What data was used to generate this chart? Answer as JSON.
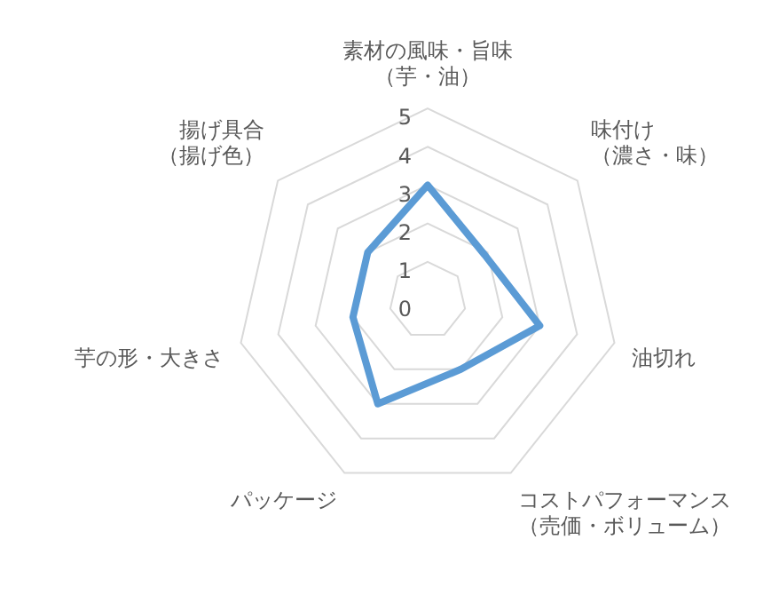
{
  "chart_data": {
    "type": "radar",
    "categories": [
      "素材の風味・旨味（芋・油）",
      "味付け（濃さ・味）",
      "油切れ",
      "コストパフォーマンス（売価・ボリューム）",
      "パッケージ",
      "芋の形・大きさ",
      "揚げ具合（揚げ色）"
    ],
    "series": [
      {
        "color": "#5b9bd5",
        "values": [
          3,
          1.9,
          3,
          2,
          3,
          2,
          2
        ]
      }
    ],
    "ylim": [
      0,
      5
    ],
    "yticks": [
      0,
      1,
      2,
      3,
      4,
      5
    ],
    "grid": true,
    "legend": false,
    "marker": "none"
  }
}
